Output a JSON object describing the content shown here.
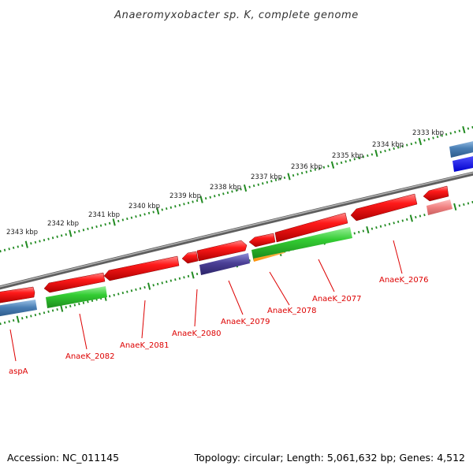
{
  "title": "Anaeromyxobacter sp. K, complete genome",
  "footer": {
    "accession": "Accession: NC_011145",
    "topology": "Topology: circular; Length: 5,061,632 bp; Genes: 4,512"
  },
  "colors": {
    "backbone": "#8c8c8c",
    "tick": "#228b22",
    "cds_forward": "#ff0000",
    "cds_reverse": "#ff0000",
    "gene_label": "#dd0000",
    "rna": "#3333cc"
  },
  "scale": {
    "unit": "kbp",
    "ticks": [
      {
        "kbp": 2333,
        "label": "2333 kbp"
      },
      {
        "kbp": 2334,
        "label": "2334 kbp"
      },
      {
        "kbp": 2335,
        "label": "2335 kbp"
      },
      {
        "kbp": 2336,
        "label": "2336 kbp"
      },
      {
        "kbp": 2337,
        "label": "2337 kbp"
      },
      {
        "kbp": 2338,
        "label": "2338 kbp"
      },
      {
        "kbp": 2339,
        "label": "2339 kbp"
      },
      {
        "kbp": 2340,
        "label": "2340 kbp"
      },
      {
        "kbp": 2341,
        "label": "2341 kbp"
      },
      {
        "kbp": 2342,
        "label": "2342 kbp"
      },
      {
        "kbp": 2343,
        "label": "2343 kbp"
      }
    ]
  },
  "genes": [
    {
      "id": "aspA",
      "label": "aspA"
    },
    {
      "id": "AnaeK_2082",
      "label": "AnaeK_2082"
    },
    {
      "id": "AnaeK_2081",
      "label": "AnaeK_2081"
    },
    {
      "id": "AnaeK_2080",
      "label": "AnaeK_2080"
    },
    {
      "id": "AnaeK_2079",
      "label": "AnaeK_2079"
    },
    {
      "id": "AnaeK_2078",
      "label": "AnaeK_2078"
    },
    {
      "id": "AnaeK_2077",
      "label": "AnaeK_2077"
    },
    {
      "id": "AnaeK_2076",
      "label": "AnaeK_2076"
    }
  ]
}
